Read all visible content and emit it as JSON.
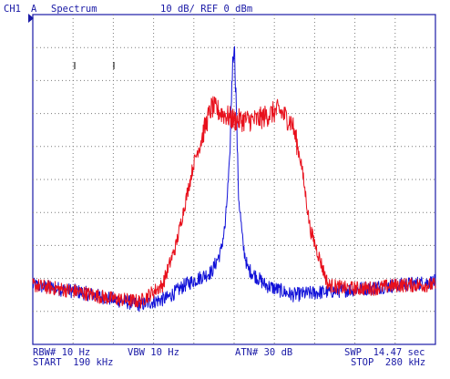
{
  "header": {
    "channel": "CH1",
    "mode": "A",
    "title": "Spectrum",
    "scale": "10 dB/ REF 0 dBm"
  },
  "footer": {
    "rbw": "RBW# 10 Hz",
    "vbw": "VBW 10 Hz",
    "atn": "ATN# 30 dB",
    "swp": "SWP  14.47 sec",
    "start": "START  190 kHz",
    "stop": "STOP  280 kHz"
  },
  "colors": {
    "text": "#1a1aa6",
    "frame": "#1a1aa6",
    "grid": "#7a7a7a",
    "trace_a": "#e8101c",
    "trace_b": "#1010d8"
  },
  "chart_data": {
    "type": "line",
    "x_unit": "kHz",
    "y_unit": "dBm",
    "xlim": [
      190,
      280
    ],
    "ylim": [
      -100,
      0
    ],
    "grid": "dotted",
    "series": [
      {
        "color": "#e8101c",
        "x": [
          190,
          200,
          207,
          214,
          219,
          222,
          226,
          229,
          230,
          235,
          240,
          245,
          248,
          250,
          252,
          256,
          260,
          266,
          272,
          280
        ],
        "y": [
          -82,
          -84,
          -86,
          -87,
          -82,
          -70,
          -45,
          -32,
          -28,
          -32,
          -32,
          -29,
          -33,
          -45,
          -65,
          -82,
          -83,
          -83,
          -82,
          -82
        ]
      },
      {
        "color": "#1010d8",
        "x": [
          190,
          200,
          207,
          214,
          220,
          224,
          230,
          232,
          233,
          234,
          234.5,
          235,
          235.5,
          236,
          237,
          238,
          242,
          248,
          256,
          264,
          272,
          280
        ],
        "y": [
          -82,
          -84,
          -86,
          -88,
          -86,
          -82,
          -78,
          -72,
          -64,
          -45,
          -20,
          -8,
          -28,
          -55,
          -70,
          -77,
          -82,
          -85,
          -84,
          -83,
          -82,
          -81
        ]
      }
    ]
  }
}
